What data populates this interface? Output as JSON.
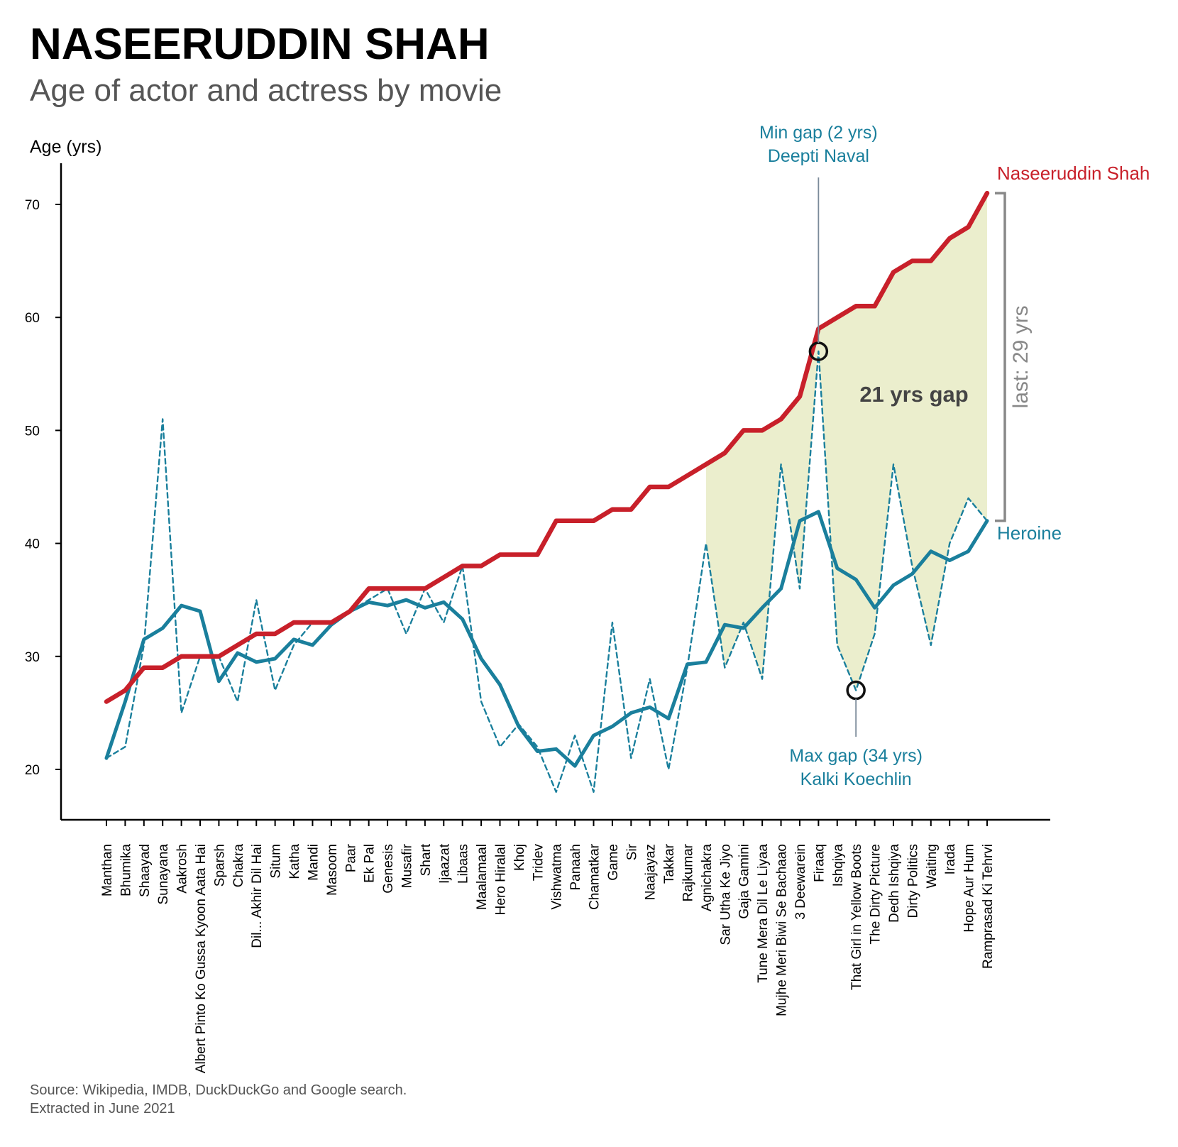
{
  "title": "NASEERUDDIN SHAH",
  "subtitle": "Age of actor and actress by movie",
  "colors": {
    "actor": "#c8202a",
    "heroine": "#1a7f9c",
    "gap_fill": "#e9ecc8",
    "bracket": "#888888",
    "gap_text": "#444444",
    "source_text": "#555555"
  },
  "source_lines": [
    "Source: Wikipedia, IMDB, DuckDuckGo and Google search.",
    "Extracted in June 2021"
  ],
  "annotations": {
    "min_gap_line1": "Min gap (2 yrs)",
    "min_gap_line2": "Deepti Naval",
    "max_gap_line1": "Max gap (34 yrs)",
    "max_gap_line2": "Kalki Koechlin",
    "gap_label": "21 yrs gap",
    "last_label": "last: 29 yrs",
    "actor_label": "Naseeruddin Shah",
    "heroine_label": "Heroine"
  },
  "chart_data": {
    "type": "line",
    "ylabel": "Age (yrs)",
    "xlabel": "",
    "ylim": [
      15.5,
      73.5
    ],
    "yticks": [
      20,
      30,
      40,
      50,
      60,
      70
    ],
    "grid": false,
    "categories": [
      "Manthan",
      "Bhumika",
      "Shaayad",
      "Sunayana",
      "Aakrosh",
      "Albert Pinto Ko Gussa Kyoon Aata Hai",
      "Sparsh",
      "Chakra",
      "Dil... Akhir Dil Hai",
      "Situm",
      "Katha",
      "Mandi",
      "Masoom",
      "Paar",
      "Ek Pal",
      "Genesis",
      "Musafir",
      "Shart",
      "Ijaazat",
      "Libaas",
      "Maalamaal",
      "Hero Hiralal",
      "Khoj",
      "Tridev",
      "Vishwatma",
      "Panaah",
      "Chamatkar",
      "Game",
      "Sir",
      "Naajayaz",
      "Takkar",
      "Rajkumar",
      "Agnichakra",
      "Sar Utha Ke Jiyo",
      "Gaja Gamini",
      "Tune Mera Dil Le Liyaa",
      "Mujhe Meri Biwi Se Bachaao",
      "3 Deewarein",
      "Firaaq",
      "Ishqiya",
      "That Girl in Yellow Boots",
      "The Dirty Picture",
      "Dedh Ishqiya",
      "Dirty Politics",
      "Waiting",
      "Irada",
      "Hope Aur Hum",
      "Ramprasad Ki Tehrvi"
    ],
    "series": [
      {
        "name": "Naseeruddin Shah",
        "style": "solid-thick",
        "values": [
          26,
          27,
          29,
          29,
          30,
          30,
          30,
          31,
          32,
          32,
          33,
          33,
          33,
          34,
          36,
          36,
          36,
          36,
          37,
          38,
          38,
          39,
          39,
          39,
          42,
          42,
          42,
          43,
          43,
          45,
          45,
          46,
          47,
          48,
          50,
          50,
          51,
          53,
          59,
          60,
          61,
          61,
          64,
          65,
          65,
          67,
          68,
          71
        ]
      },
      {
        "name": "Heroine",
        "style": "dashed",
        "values": [
          21,
          22,
          31,
          51,
          25,
          30,
          30,
          26,
          35,
          27,
          31,
          33,
          33,
          34,
          35,
          36,
          32,
          36,
          33,
          38,
          26,
          22,
          24,
          22,
          18,
          23,
          18,
          33,
          21,
          28,
          20,
          29,
          40,
          29,
          33,
          28,
          47,
          36,
          57,
          31,
          27,
          32,
          47,
          38,
          31,
          40,
          44,
          42
        ]
      },
      {
        "name": "Heroine (rolling average)",
        "style": "solid",
        "values": [
          21,
          26,
          31.5,
          32.5,
          34.5,
          34,
          27.8,
          30.3,
          29.5,
          29.8,
          31.5,
          31,
          32.8,
          34,
          34.8,
          34.5,
          35,
          34.3,
          34.8,
          33.3,
          29.8,
          27.5,
          23.8,
          21.6,
          21.8,
          20.3,
          23,
          23.8,
          25,
          25.5,
          24.5,
          29.3,
          29.5,
          32.8,
          32.5,
          34.3,
          36,
          42,
          42.8,
          37.8,
          36.8,
          34.3,
          36.3,
          37.3,
          39.3,
          38.5,
          39.3,
          42
        ]
      }
    ],
    "shaded_gap_from": "Agnichakra",
    "shaded_gap_to": "Ramprasad Ki Tehrvi",
    "markers": [
      {
        "category": "Firaaq",
        "value": 57
      },
      {
        "category": "That Girl in Yellow Boots",
        "value": 27
      }
    ]
  }
}
